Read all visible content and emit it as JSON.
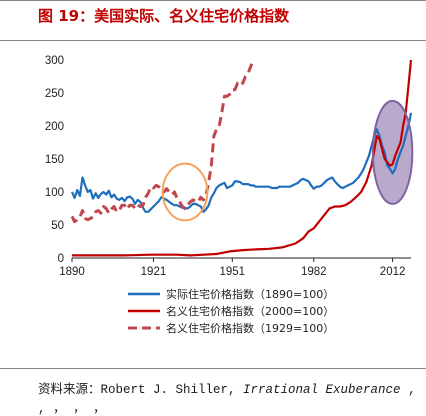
{
  "header": {
    "title": "图 19：美国实际、名义住宅价格指数"
  },
  "footer": {
    "source_prefix": "资料来源：Robert J. Shiller, ",
    "source_italic": "Irrational Exuberance",
    "source_suffix": " ,",
    "source_tail": "  ,    ，     ，    ，    "
  },
  "chart_data": {
    "type": "line",
    "title": "",
    "xlabel": "",
    "ylabel": "",
    "xlim": [
      1890,
      2019
    ],
    "ylim": [
      0,
      300
    ],
    "x_ticks": [
      1890,
      1921,
      1951,
      1982,
      2012
    ],
    "y_ticks": [
      0,
      50,
      100,
      150,
      200,
      250,
      300
    ],
    "grid": false,
    "legend_position": "bottom",
    "series": [
      {
        "name": "实际住宅价格指数（1890=100）",
        "color": "#1f6ebd",
        "dash": false,
        "points": [
          [
            1890,
            100
          ],
          [
            1891,
            91
          ],
          [
            1892,
            103
          ],
          [
            1893,
            94
          ],
          [
            1894,
            122
          ],
          [
            1895,
            110
          ],
          [
            1896,
            100
          ],
          [
            1897,
            103
          ],
          [
            1898,
            90
          ],
          [
            1899,
            98
          ],
          [
            1900,
            91
          ],
          [
            1901,
            97
          ],
          [
            1902,
            100
          ],
          [
            1903,
            96
          ],
          [
            1904,
            102
          ],
          [
            1905,
            92
          ],
          [
            1906,
            96
          ],
          [
            1907,
            90
          ],
          [
            1908,
            88
          ],
          [
            1909,
            91
          ],
          [
            1910,
            86
          ],
          [
            1911,
            92
          ],
          [
            1912,
            93
          ],
          [
            1913,
            90
          ],
          [
            1914,
            82
          ],
          [
            1915,
            88
          ],
          [
            1916,
            85
          ],
          [
            1917,
            76
          ],
          [
            1918,
            70
          ],
          [
            1919,
            70
          ],
          [
            1920,
            74
          ],
          [
            1921,
            78
          ],
          [
            1922,
            82
          ],
          [
            1923,
            86
          ],
          [
            1924,
            92
          ],
          [
            1925,
            90
          ],
          [
            1926,
            88
          ],
          [
            1927,
            85
          ],
          [
            1928,
            82
          ],
          [
            1929,
            80
          ],
          [
            1930,
            80
          ],
          [
            1931,
            78
          ],
          [
            1932,
            76
          ],
          [
            1933,
            76
          ],
          [
            1934,
            75
          ],
          [
            1935,
            78
          ],
          [
            1936,
            82
          ],
          [
            1937,
            82
          ],
          [
            1938,
            80
          ],
          [
            1939,
            78
          ],
          [
            1940,
            70
          ],
          [
            1941,
            74
          ],
          [
            1942,
            80
          ],
          [
            1943,
            92
          ],
          [
            1944,
            98
          ],
          [
            1945,
            106
          ],
          [
            1946,
            110
          ],
          [
            1947,
            112
          ],
          [
            1948,
            114
          ],
          [
            1949,
            106
          ],
          [
            1950,
            108
          ],
          [
            1951,
            110
          ],
          [
            1952,
            116
          ],
          [
            1953,
            116
          ],
          [
            1954,
            115
          ],
          [
            1955,
            112
          ],
          [
            1956,
            112
          ],
          [
            1957,
            112
          ],
          [
            1958,
            110
          ],
          [
            1959,
            110
          ],
          [
            1960,
            108
          ],
          [
            1961,
            108
          ],
          [
            1962,
            108
          ],
          [
            1963,
            108
          ],
          [
            1964,
            108
          ],
          [
            1965,
            108
          ],
          [
            1966,
            106
          ],
          [
            1967,
            106
          ],
          [
            1968,
            106
          ],
          [
            1969,
            108
          ],
          [
            1970,
            108
          ],
          [
            1971,
            108
          ],
          [
            1972,
            108
          ],
          [
            1973,
            108
          ],
          [
            1974,
            110
          ],
          [
            1975,
            112
          ],
          [
            1976,
            114
          ],
          [
            1977,
            118
          ],
          [
            1978,
            120
          ],
          [
            1979,
            118
          ],
          [
            1980,
            116
          ],
          [
            1981,
            110
          ],
          [
            1982,
            105
          ],
          [
            1983,
            108
          ],
          [
            1984,
            108
          ],
          [
            1985,
            110
          ],
          [
            1986,
            114
          ],
          [
            1987,
            118
          ],
          [
            1988,
            120
          ],
          [
            1989,
            122
          ],
          [
            1990,
            116
          ],
          [
            1991,
            112
          ],
          [
            1992,
            108
          ],
          [
            1993,
            106
          ],
          [
            1994,
            108
          ],
          [
            1995,
            110
          ],
          [
            1996,
            112
          ],
          [
            1997,
            114
          ],
          [
            1998,
            118
          ],
          [
            1999,
            122
          ],
          [
            2000,
            128
          ],
          [
            2001,
            135
          ],
          [
            2002,
            145
          ],
          [
            2003,
            155
          ],
          [
            2004,
            170
          ],
          [
            2005,
            185
          ],
          [
            2006,
            195
          ],
          [
            2007,
            185
          ],
          [
            2008,
            170
          ],
          [
            2009,
            160
          ],
          [
            2010,
            140
          ],
          [
            2011,
            135
          ],
          [
            2012,
            128
          ],
          [
            2013,
            135
          ],
          [
            2014,
            150
          ],
          [
            2015,
            160
          ],
          [
            2016,
            170
          ],
          [
            2017,
            185
          ],
          [
            2018,
            200
          ],
          [
            2019,
            220
          ]
        ]
      },
      {
        "name": "名义住宅价格指数（2000=100）",
        "color": "#c00000",
        "dash": false,
        "points": [
          [
            1890,
            4
          ],
          [
            1900,
            4
          ],
          [
            1910,
            4
          ],
          [
            1920,
            5
          ],
          [
            1925,
            5
          ],
          [
            1930,
            5
          ],
          [
            1935,
            4
          ],
          [
            1940,
            5
          ],
          [
            1945,
            6
          ],
          [
            1950,
            10
          ],
          [
            1955,
            12
          ],
          [
            1960,
            13
          ],
          [
            1965,
            14
          ],
          [
            1970,
            16
          ],
          [
            1975,
            22
          ],
          [
            1978,
            30
          ],
          [
            1980,
            40
          ],
          [
            1982,
            45
          ],
          [
            1984,
            55
          ],
          [
            1986,
            65
          ],
          [
            1988,
            75
          ],
          [
            1990,
            78
          ],
          [
            1992,
            78
          ],
          [
            1994,
            80
          ],
          [
            1996,
            85
          ],
          [
            1998,
            92
          ],
          [
            2000,
            100
          ],
          [
            2002,
            115
          ],
          [
            2004,
            140
          ],
          [
            2006,
            185
          ],
          [
            2007,
            180
          ],
          [
            2008,
            165
          ],
          [
            2009,
            150
          ],
          [
            2010,
            145
          ],
          [
            2011,
            140
          ],
          [
            2012,
            142
          ],
          [
            2013,
            155
          ],
          [
            2014,
            165
          ],
          [
            2015,
            175
          ],
          [
            2016,
            200
          ],
          [
            2017,
            220
          ],
          [
            2018,
            260
          ],
          [
            2019,
            300
          ]
        ]
      },
      {
        "name": "名义住宅价格指数（1929=100）",
        "color": "#c0484d",
        "dash": true,
        "points": [
          [
            1890,
            63
          ],
          [
            1891,
            55
          ],
          [
            1892,
            58
          ],
          [
            1893,
            62
          ],
          [
            1894,
            72
          ],
          [
            1895,
            60
          ],
          [
            1896,
            58
          ],
          [
            1897,
            60
          ],
          [
            1898,
            62
          ],
          [
            1899,
            70
          ],
          [
            1900,
            72
          ],
          [
            1901,
            68
          ],
          [
            1902,
            78
          ],
          [
            1903,
            75
          ],
          [
            1904,
            68
          ],
          [
            1905,
            74
          ],
          [
            1906,
            78
          ],
          [
            1907,
            70
          ],
          [
            1908,
            72
          ],
          [
            1909,
            80
          ],
          [
            1910,
            80
          ],
          [
            1911,
            74
          ],
          [
            1912,
            80
          ],
          [
            1913,
            80
          ],
          [
            1914,
            75
          ],
          [
            1915,
            80
          ],
          [
            1916,
            78
          ],
          [
            1917,
            80
          ],
          [
            1918,
            92
          ],
          [
            1919,
            98
          ],
          [
            1920,
            108
          ],
          [
            1921,
            106
          ],
          [
            1922,
            110
          ],
          [
            1923,
            108
          ],
          [
            1924,
            105
          ],
          [
            1925,
            100
          ],
          [
            1926,
            105
          ],
          [
            1927,
            100
          ],
          [
            1928,
            96
          ],
          [
            1929,
            100
          ],
          [
            1930,
            90
          ],
          [
            1931,
            85
          ],
          [
            1932,
            78
          ],
          [
            1933,
            75
          ],
          [
            1934,
            80
          ],
          [
            1935,
            85
          ],
          [
            1936,
            88
          ],
          [
            1937,
            86
          ],
          [
            1938,
            85
          ],
          [
            1939,
            92
          ],
          [
            1940,
            88
          ],
          [
            1941,
            95
          ],
          [
            1942,
            115
          ],
          [
            1943,
            140
          ],
          [
            1944,
            185
          ],
          [
            1945,
            195
          ],
          [
            1946,
            200
          ],
          [
            1947,
            220
          ],
          [
            1948,
            245
          ],
          [
            1949,
            245
          ],
          [
            1950,
            248
          ],
          [
            1951,
            255
          ],
          [
            1952,
            255
          ],
          [
            1953,
            265
          ],
          [
            1954,
            262
          ],
          [
            1955,
            265
          ],
          [
            1956,
            275
          ],
          [
            1957,
            280
          ],
          [
            1958,
            290
          ],
          [
            1959,
            300
          ]
        ]
      }
    ],
    "annotations": [
      {
        "type": "ellipse",
        "color": "#f5a25a",
        "fill": "none",
        "center": [
          1933,
          100
        ],
        "radii_years": 8.5,
        "radii_value": 43
      },
      {
        "type": "ellipse",
        "color": "#8064a2",
        "fill": "rgba(128,100,162,0.55)",
        "center": [
          2012,
          160
        ],
        "radii_years": 7.5,
        "radii_value": 78
      }
    ]
  }
}
